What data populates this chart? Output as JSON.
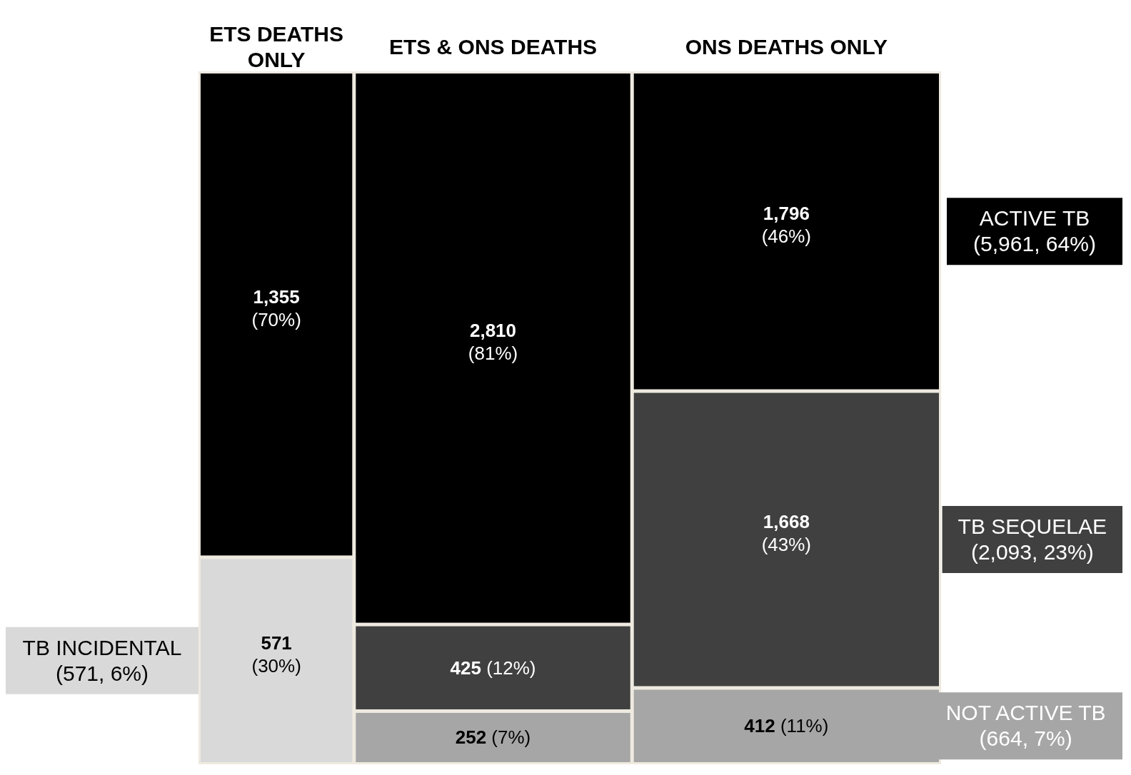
{
  "chart_data": {
    "type": "other",
    "categories": [
      "ETS DEATHS ONLY",
      "ETS & ONS DEATHS",
      "ONS DEATHS ONLY"
    ],
    "series": [
      {
        "name": "ACTIVE TB (5,961, 64%)",
        "color": "#000000",
        "values": [
          1355,
          2810,
          1796
        ],
        "value_labels": [
          "1,355 (70%)",
          "2,810 (81%)",
          "1,796 (46%)"
        ]
      },
      {
        "name": "TB SEQUELAE (2,093, 23%)",
        "color": "#404040",
        "values": [
          null,
          425,
          1668
        ],
        "value_labels": [
          null,
          "425 (12%)",
          "1,668 (43%)"
        ]
      },
      {
        "name": "NOT ACTIVE TB (664, 7%)",
        "color": "#a6a6a6",
        "values": [
          null,
          252,
          412
        ],
        "value_labels": [
          null,
          "252 (7%)",
          "412 (11%)"
        ]
      },
      {
        "name": "TB INCIDENTAL (571, 6%)",
        "color": "#d9d9d9",
        "values": [
          571,
          null,
          null
        ],
        "value_labels": [
          "571 (30%)",
          null,
          null
        ]
      }
    ]
  }
}
